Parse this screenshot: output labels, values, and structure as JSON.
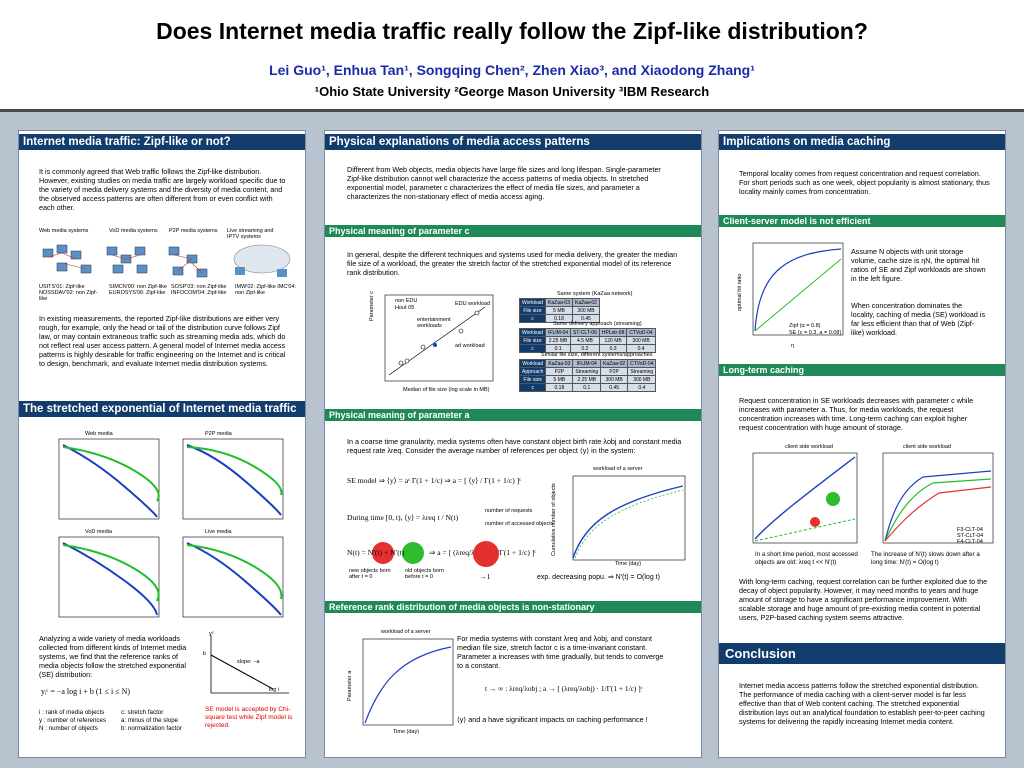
{
  "header": {
    "title": "Does Internet media traffic really follow the Zipf-like distribution?",
    "authors": "Lei Guo¹, Enhua Tan¹, Songqing Chen², Zhen Xiao³, and Xiaodong Zhang¹",
    "affiliations": "¹Ohio State University    ²George Mason University    ³IBM Research"
  },
  "col1": {
    "s1_title": "Internet media traffic: Zipf-like or not?",
    "s1_p1": "It is commonly agreed that Web traffic follows the Zipf-like distribution. However, existing studies on media traffic are largely workload specific due to the variety of media delivery systems and the diversity of media content, and the observed access patterns are often different from or even conflict with each other.",
    "fig_labels": [
      "Web media systems",
      "VoD media systems",
      "P2P media systems",
      "Live streaming and IPTV systems"
    ],
    "fig_caps": [
      "USITS'01: Zipf-like NOSSDAV'02: non Zipf-like",
      "SIMCN'00: non Zipf-like EUROSYS'06: Zipf-like",
      "SOSP'03: non Zipf-like INFOCOM'04: Zipf-like",
      "IMW'02: Zipf-like IMC'04: non Zipf-like"
    ],
    "s1_p2": "In existing measurements, the reported Zipf-like distributions are either very rough, for example, only the head or tail of the distribution curve follows Zipf law, or may contain extraneous traffic such as streaming media ads, which do not reflect real user access pattern. A general model of Internet media access patterns is highly desirable for traffic engineering on the Internet and is critical to design, benchmark, and evaluate Internet media distribution systems.",
    "s2_title": "The stretched exponential of Internet media traffic",
    "plot_titles": [
      "Web media",
      "P2P media",
      "VoD media",
      "Live media"
    ],
    "s2_p1": "Analyzing a wide variety of media workloads collected from different kinds of Internet media systems, we find that the reference ranks of media objects follow the stretched exponential (SE) distribution:",
    "formula": "yᵢᶜ = −a log i + b  (1 ≤ i ≤ N)",
    "legend_left": [
      "i : rank of media objects",
      "y : number of references",
      "N : number of objects"
    ],
    "legend_right": [
      "c: stretch factor",
      "a: minus of the slope",
      "b: normalization factor"
    ],
    "slope_label": "slope: −a",
    "axis_y": "yᶜ",
    "axis_x": "log i",
    "axis_b": "b",
    "note": "SE model is accepted by Chi-square test while Zipf model is rejected."
  },
  "col2": {
    "s1_title": "Physical explanations of media access patterns",
    "s1_p1": "Different from Web objects, media objects have large file sizes and long lifespan. Single-parameter Zipf-like distribution cannot well characterize the access patterns of media objects. In stretched exponential model, parameter c characterizes the effect of media file sizes, and parameter a characterizes the non-stationary effect of media access aging.",
    "sub1_title": "Physical meaning of parameter c",
    "sub1_p": "In general, despite the different techniques and systems used for media delivery, the greater the median file size of a workload, the greater the stretch factor of the stretched exponential model of its reference rank distribution.",
    "chart_legend": [
      "non EDU",
      "Hout 05"
    ],
    "chart_notes": [
      "EDU workload",
      "entertainment workloads",
      "ad workload"
    ],
    "chart_xlabel": "Median of file size (log scale in MB)",
    "chart_ylabel": "Parameter c",
    "table1_caption": "Same system (KaZaa network)",
    "table1": [
      [
        "Workload",
        "KaZaa-03",
        "KaZaa-02"
      ],
      [
        "File size",
        "5 MB",
        "300 MB"
      ],
      [
        "c",
        "0.18",
        "0.45"
      ]
    ],
    "table2_caption": "Same delivery approach (streaming)",
    "table2": [
      [
        "Workload",
        "IFLIM-04",
        "ST-CLT-06",
        "HPLstr-98",
        "CTVoD-04"
      ],
      [
        "File size",
        "2.25 MB",
        "4.5 MB",
        "120 MB",
        "300 MB"
      ],
      [
        "c",
        "0.1",
        "0.2",
        "0.3",
        "0.4"
      ]
    ],
    "table3_caption": "Similar file size, different systems/approaches",
    "table3": [
      [
        "Workload",
        "KaZaa-03",
        "IFLIM-04",
        "KaZaa-02",
        "CTVoD-04"
      ],
      [
        "Approach",
        "P2P",
        "Streaming",
        "P2P",
        "Streaming"
      ],
      [
        "File size",
        "5 MB",
        "2.25 MB",
        "300 MB",
        "300 MB"
      ],
      [
        "c",
        "0.18",
        "0.1",
        "0.45",
        "0.4"
      ]
    ],
    "sub2_title": "Physical meaning of parameter a",
    "sub2_p": "In a coarse time granularity, media systems often have constant object birth rate λobj and constant media request rate λreq. Consider the average number of references per object ⟨y⟩ in the system:",
    "se_model": "SE model  ⇒  ⟨y⟩ = aᶜ Γ(1 + 1/c)  ⇒  a = [ ⟨y⟩ / Γ(1 + 1/c) ]ᶜ",
    "during_time": "During time [0, t),  ⟨y⟩ = λreq t / N(t)",
    "num_requests": "number of requests",
    "num_objects": "number of accessed objects",
    "nt_formula": "N(t) =  N′(t)  +  N′(t)",
    "new_objects": "new objects born after t = 0",
    "old_objects": "old objects born before t = 0",
    "a_formula": "⇒  a = [ (λreq/λobj) · 1/Γ(1 + 1/c) ]ᶜ",
    "arrow_one": "→1",
    "exp_decr": "exp. decreasing popu.  ⇒  N′(t) = O(log t)",
    "chart2_title": "workload of a server",
    "chart2_xlabel": "Time (day)",
    "chart2_ylabel": "Cumulative number of objects",
    "sub3_title": "Reference rank distribution of media objects is non-stationary",
    "chart3_title": "workload of a server",
    "chart3_xlabel": "Time (day)",
    "chart3_ylabel": "Parameter a",
    "sub3_p": "For media systems with constant λreq and λobj, and constant median file size, stretch factor c is a time-invariant constant. Parameter a increases with time gradually, but tends to converge to a constant.",
    "t_formula": "t → ∞ :  λreq/λobj ;  a → [ (λreq/λobj) · 1/Γ(1 + 1/c) ]ᶜ",
    "sub3_end": "⟨y⟩ and a have significant impacts on caching performance !"
  },
  "col3": {
    "s1_title": "Implications on media caching",
    "s1_p": "Temporal locality comes from request concentration and request correlation. For short periods such as one week, object popularity is almost stationary, thus locality mainly comes from concentration.",
    "s1_red_word": "stationary",
    "sub1_title": "Client-server model is not efficient",
    "sub1_p1": "Assume N objects with unit storage volume, cache size is ηN, the optimal hit ratios of SE and Zipf workloads are shown in the left figure.",
    "sub1_p2": "When concentration dominates the locality, caching of media (SE) workload is far less efficient than that of Web (Zipf-like) workload.",
    "chart_legend": [
      "Zipf (α = 0.8)",
      "SE (c = 0.3, a = 0.08)"
    ],
    "chart_xlabel": "η",
    "chart_ylabel": "optimal hit ratio",
    "sub2_title": "Long-term caching",
    "sub2_p1": "Request concentration in SE workloads decreases with parameter c while increases with parameter a. Thus, for media workloads, the request concentration increases with time. Long-term caching can exploit higher request concentration with huge amount of storage.",
    "plotL_title": "client side workload",
    "plotR_title": "client side workload",
    "plotL_cap": "In a short time period, most accessed objects are old:  λreq t << N′(t)",
    "plotR_cap": "The increase of N′(t) slows down after a long time: N′(t) = O(log t)",
    "plotR_legend": [
      "F3-CLT-04",
      "ST-CLT-04",
      "F4-CLT-04"
    ],
    "sub2_p2": "With long-term caching, request correlation can be further exploited due to the decay of object popularity. However, it may need months to years and huge amount of storage to have a significant performance improvement. With scalable storage and huge amount of pre-existing media content in potential users, P2P-based caching system seems attractive.",
    "s2_title": "Conclusion",
    "s2_p": "Internet media access patterns follow the stretched exponential distribution. The performance of media caching with a client-server model is far less effective than that of Web content caching. The stretched exponential distribution lays out an analytical foundation to establish peer-to-peer caching systems for delivering the rapidly increasing Internet media content."
  },
  "colors": {
    "header_bar": "#123c6b",
    "sub_bar": "#1f8a58",
    "author_blue": "#1b2aa8",
    "background": "#b9c3cf"
  }
}
